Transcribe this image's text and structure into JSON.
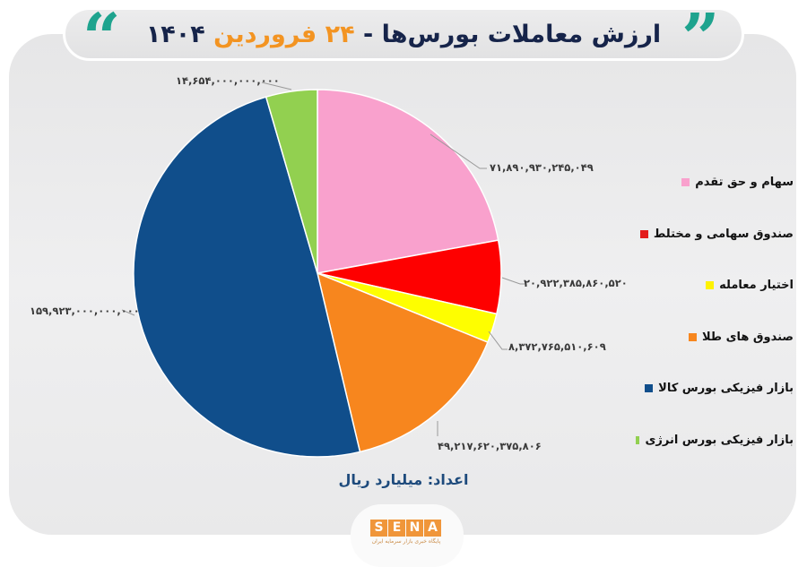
{
  "header": {
    "title_main": "ارزش معاملات بورس‌ها -",
    "title_day": "۲۴ فروردین",
    "title_year": "۱۴۰۴",
    "quote_open": "“",
    "quote_close": "”",
    "accent_color": "#f39422",
    "quote_color": "#1ea38e"
  },
  "chart_data": {
    "type": "pie",
    "title": "ارزش معاملات بورس‌ها - ۲۴ فروردین ۱۴۰۴",
    "unit_note": "اعداد: میلیارد ریال",
    "start_angle": "12 o'clock, clockwise",
    "legend_position": "right",
    "categories": [
      "سهام و حق تقدم",
      "صندوق سهامی و مختلط",
      "اختیار معامله",
      "صندوق های طلا",
      "بازار فیزیکی بورس کالا",
      "بازار فیزیکی بورس انرژی"
    ],
    "values": [
      71890930245049,
      20922385860520,
      8372765510609,
      49217620375806,
      159923000000000,
      14654000000000
    ],
    "value_labels": [
      "۷۱,۸۹۰,۹۳۰,۲۴۵,۰۴۹",
      "۲۰,۹۲۲,۳۸۵,۸۶۰,۵۲۰",
      "۸,۳۷۲,۷۶۵,۵۱۰,۶۰۹",
      "۴۹,۲۱۷,۶۲۰,۳۷۵,۸۰۶",
      "۱۵۹,۹۲۳,۰۰۰,۰۰۰,۰۰۰",
      "۱۴,۶۵۴,۰۰۰,۰۰۰,۰۰۰"
    ],
    "colors": [
      "#f9a1cd",
      "#fe0000",
      "#fefe00",
      "#f7861e",
      "#104e8b",
      "#92d050"
    ]
  },
  "legend": {
    "items": [
      {
        "label": "سهام و حق تقدم",
        "color": "#f9a1cd"
      },
      {
        "label": "صندوق سهامی و مختلط",
        "color": "#e31b1b"
      },
      {
        "label": "اختیار معامله",
        "color": "#fef200"
      },
      {
        "label": "صندوق های طلا",
        "color": "#f7861e"
      },
      {
        "label": "بازار فیزیکی بورس کالا",
        "color": "#104e8b"
      },
      {
        "label": "بازار فیزیکی بورس انرژی",
        "color": "#92d050"
      }
    ]
  },
  "footer": {
    "units": "اعداد: میلیارد ریال",
    "logo_letters": [
      "S",
      "E",
      "N",
      "A"
    ],
    "logo_subtitle": "پایگاه خبری بازار سرمایه ایران"
  }
}
